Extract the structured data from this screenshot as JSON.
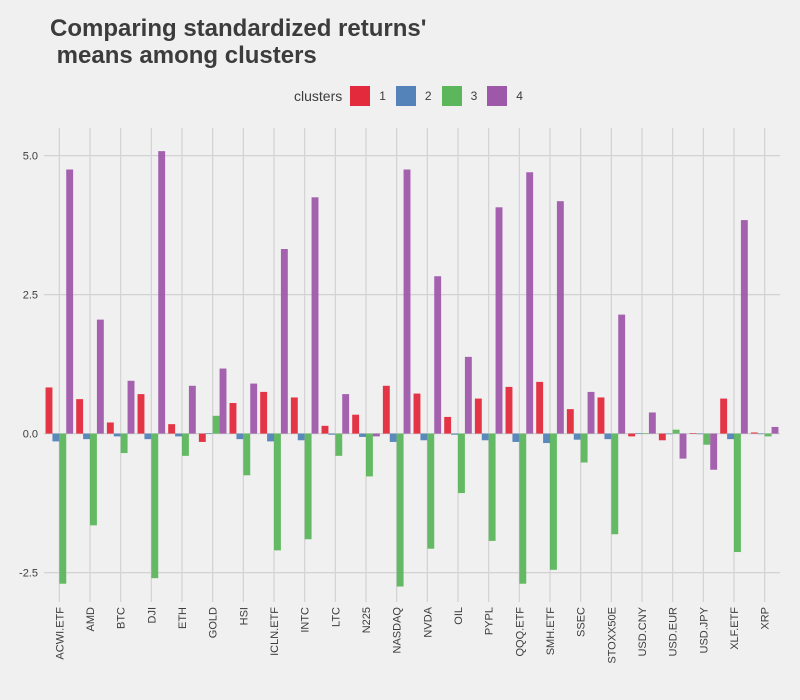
{
  "chart_data": {
    "type": "bar",
    "title": "Comparing standardized returns'\n means among clusters",
    "xlabel": "",
    "ylabel": "",
    "ylim": [
      -2.95,
      5.5
    ],
    "yticks": [
      5.0,
      2.5,
      0.0,
      -2.5
    ],
    "ytick_labels": [
      "5.0",
      "2.5",
      "0.0",
      "-2.5"
    ],
    "grid": true,
    "legend_title": "clusters",
    "legend_position": "top",
    "categories": [
      "ACWI.ETF",
      "AMD",
      "BTC",
      "DJI",
      "ETH",
      "GOLD",
      "HSI",
      "ICLN.ETF",
      "INTC",
      "LTC",
      "N225",
      "NASDAQ",
      "NVDA",
      "OIL",
      "PYPL",
      "QQQ.ETF",
      "SMH.ETF",
      "SSEC",
      "STOXX50E",
      "USD.CNY",
      "USD.EUR",
      "USD.JPY",
      "XLF.ETF",
      "XRP"
    ],
    "series": [
      {
        "name": "1",
        "color": "#e32a3d",
        "values": [
          0.83,
          0.62,
          0.2,
          0.71,
          0.17,
          -0.15,
          0.55,
          0.75,
          0.65,
          0.14,
          0.34,
          0.86,
          0.72,
          0.3,
          0.63,
          0.84,
          0.93,
          0.44,
          0.65,
          -0.05,
          -0.12,
          0.01,
          0.63,
          0.02
        ]
      },
      {
        "name": "2",
        "color": "#5383b8",
        "values": [
          -0.14,
          -0.1,
          -0.05,
          -0.1,
          -0.05,
          0.01,
          -0.1,
          -0.14,
          -0.12,
          -0.02,
          -0.06,
          -0.15,
          -0.12,
          -0.02,
          -0.12,
          -0.15,
          -0.17,
          -0.11,
          -0.1,
          0.01,
          0.0,
          -0.01,
          -0.1,
          0.0
        ]
      },
      {
        "name": "3",
        "color": "#5cb65c",
        "values": [
          -2.7,
          -1.65,
          -0.35,
          -2.6,
          -0.4,
          0.32,
          -0.75,
          -2.1,
          -1.9,
          -0.4,
          -0.77,
          -2.75,
          -2.07,
          -1.07,
          -1.93,
          -2.7,
          -2.45,
          -0.52,
          -1.81,
          0.01,
          0.07,
          -0.2,
          -2.13,
          -0.05
        ]
      },
      {
        "name": "4",
        "color": "#9e58aa",
        "values": [
          4.75,
          2.05,
          0.95,
          5.08,
          0.86,
          1.17,
          0.9,
          3.32,
          4.25,
          0.71,
          -0.05,
          4.75,
          2.83,
          1.38,
          4.07,
          4.7,
          4.18,
          0.75,
          2.14,
          0.38,
          -0.45,
          -0.65,
          3.84,
          0.12
        ]
      }
    ]
  }
}
